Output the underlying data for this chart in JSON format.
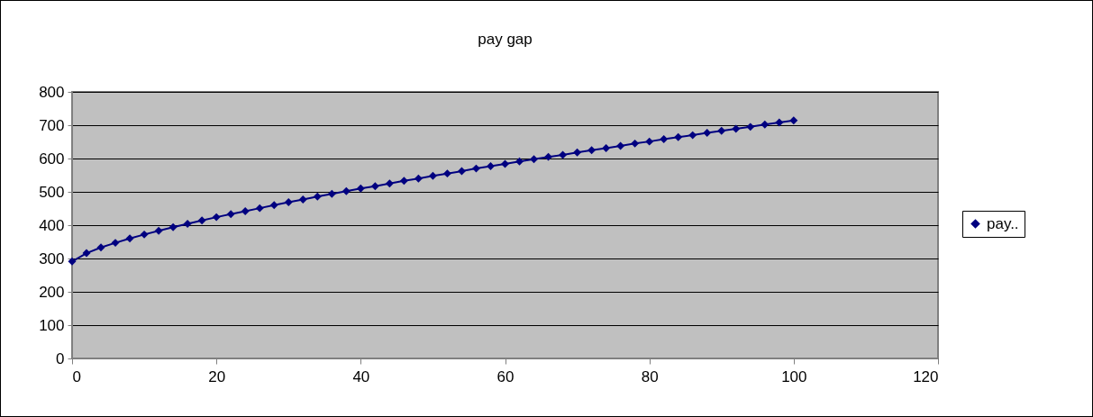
{
  "chart_data": {
    "type": "line",
    "title": "pay gap",
    "x": [
      0,
      2,
      4,
      6,
      8,
      10,
      12,
      14,
      16,
      18,
      20,
      22,
      24,
      26,
      28,
      30,
      32,
      34,
      36,
      38,
      40,
      42,
      44,
      46,
      48,
      50,
      52,
      54,
      56,
      58,
      60,
      62,
      64,
      66,
      68,
      70,
      72,
      74,
      76,
      78,
      80,
      82,
      84,
      86,
      88,
      90,
      92,
      94,
      96,
      98,
      100
    ],
    "series": [
      {
        "name": "pay..",
        "color": "#000080",
        "values": [
          291,
          316,
          333,
          347,
          360,
          372,
          383,
          394,
          404,
          414,
          424,
          433,
          442,
          451,
          460,
          469,
          477,
          486,
          494,
          502,
          510,
          517,
          525,
          533,
          540,
          548,
          555,
          562,
          570,
          577,
          584,
          591,
          598,
          605,
          611,
          618,
          625,
          631,
          638,
          645,
          651,
          658,
          664,
          670,
          677,
          683,
          689,
          695,
          702,
          708,
          714
        ]
      }
    ],
    "xlim": [
      0,
      120
    ],
    "xticks": [
      0,
      20,
      40,
      60,
      80,
      100,
      120
    ],
    "ylim": [
      0,
      800
    ],
    "yticks": [
      0,
      100,
      200,
      300,
      400,
      500,
      600,
      700,
      800
    ],
    "grid": "y",
    "legend": "right",
    "marker": "diamond",
    "line_style": "solid"
  }
}
